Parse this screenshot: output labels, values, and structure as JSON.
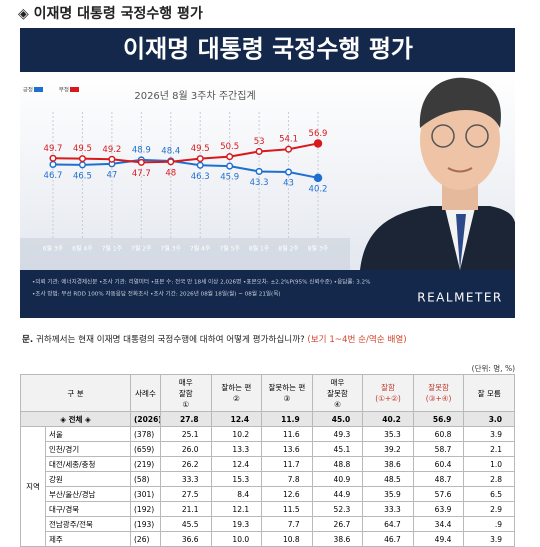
{
  "header": {
    "title": "◈ 이재명 대통령 국정수행 평가"
  },
  "chart_data": {
    "type": "line",
    "title": "이재명 대통령 국정수행 평가",
    "subtitle": "2026년 8월 3주차 주간집계",
    "categories": [
      "6월 3주",
      "6월 4주",
      "7월 1주",
      "7월 2주",
      "7월 3주",
      "7월 4주",
      "7월 5주",
      "8월 1주",
      "8월 2주",
      "8월 3주"
    ],
    "series": [
      {
        "name": "긍정",
        "color": "#1f6fd1",
        "values": [
          46.7,
          46.5,
          47.0,
          48.9,
          48.4,
          46.3,
          45.9,
          43.3,
          43.0,
          40.2
        ]
      },
      {
        "name": "부정",
        "color": "#d7191c",
        "values": [
          49.7,
          49.5,
          49.2,
          47.7,
          48.0,
          49.5,
          50.5,
          53.0,
          54.1,
          56.9
        ]
      }
    ],
    "ylim": [
      10,
      78
    ]
  },
  "footnotes": [
    "•의뢰 기관: 에너지경제신문 •조사 기관: 리얼미터 •표본 수: 전국 만 18세 이상 2,026명 •표본오차: ±2.2%P(95% 신뢰수준) •응답률: 3.2%",
    "•조사 방법: 무선 RDD 100% 자동응답 전화조사 •조사 기간: 2026년 08월 18일(월) ~ 08월 21일(목)"
  ],
  "logo": "REALMETER",
  "question": {
    "prefix": "문.",
    "text": "귀하께서는 현재 이재명 대통령의 국정수행에 대하여 어떻게 평가하십니까?",
    "note": "(보기 1~4번 순/역순 배열)"
  },
  "table": {
    "unit": "(단위: 명, %)",
    "header": [
      [
        "구 분"
      ],
      [
        "사례수"
      ],
      [
        "매우",
        "잘함",
        "①"
      ],
      [
        "잘하는 편",
        "②"
      ],
      [
        "잘못하는 편",
        "③"
      ],
      [
        "매우",
        "잘못함",
        "④"
      ],
      [
        "잘함",
        "(①+②)"
      ],
      [
        "잘못함",
        "(③+④)"
      ],
      [
        "잘 모름"
      ]
    ],
    "total": [
      "◈ 전체 ◈",
      "(2026)",
      "27.8",
      "12.4",
      "11.9",
      "45.0",
      "40.2",
      "56.9",
      "3.0"
    ],
    "group": "지역",
    "rows": [
      [
        "서울",
        "(378)",
        "25.1",
        "10.2",
        "11.6",
        "49.3",
        "35.3",
        "60.8",
        "3.9"
      ],
      [
        "인천/경기",
        "(659)",
        "26.0",
        "13.3",
        "13.6",
        "45.1",
        "39.2",
        "58.7",
        "2.1"
      ],
      [
        "대전/세종/충청",
        "(219)",
        "26.2",
        "12.4",
        "11.7",
        "48.8",
        "38.6",
        "60.4",
        "1.0"
      ],
      [
        "강원",
        "(58)",
        "33.3",
        "15.3",
        "7.8",
        "40.9",
        "48.5",
        "48.7",
        "2.8"
      ],
      [
        "부산/울산/경남",
        "(301)",
        "27.5",
        "8.4",
        "12.6",
        "44.9",
        "35.9",
        "57.6",
        "6.5"
      ],
      [
        "대구/경북",
        "(192)",
        "21.1",
        "12.1",
        "11.5",
        "52.3",
        "33.3",
        "63.9",
        "2.9"
      ],
      [
        "전남광주/전북",
        "(193)",
        "45.5",
        "19.3",
        "7.7",
        "26.7",
        "64.7",
        "34.4",
        ".9"
      ],
      [
        "제주",
        "(26)",
        "36.6",
        "10.0",
        "10.8",
        "38.6",
        "46.7",
        "49.4",
        "3.9"
      ]
    ]
  }
}
